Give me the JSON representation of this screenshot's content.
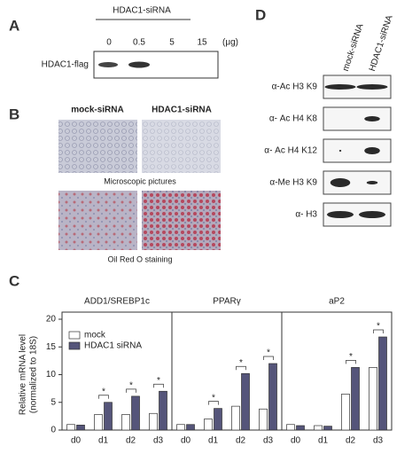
{
  "panel_a": {
    "label": "A",
    "treatment": "HDAC1-siRNA",
    "doses": [
      "0",
      "0.5",
      "5",
      "15"
    ],
    "unit": "(μg)",
    "row": "HDAC1-flag"
  },
  "panel_b": {
    "label": "B",
    "columns": [
      "mock-siRNA",
      "HDAC1-siRNA"
    ],
    "captions": [
      "Microscopic pictures",
      "Oil Red O staining"
    ]
  },
  "panel_c": {
    "label": "C"
  },
  "panel_d": {
    "label": "D",
    "columns": [
      "mock-siRNA",
      "HDAC1-siRNA"
    ],
    "rows": [
      "α-Ac H3 K9",
      "α- Ac H4 K8",
      "α- Ac H4 K12",
      "α-Me H3 K9",
      "α- H3"
    ]
  },
  "chart_data": [
    {
      "type": "bar",
      "title": "ADD1/SREBP1c",
      "categories": [
        "d0",
        "d1",
        "d2",
        "d3"
      ],
      "series": [
        {
          "name": "mock",
          "color": "#ffffff",
          "values": [
            1,
            2.8,
            2.8,
            3
          ]
        },
        {
          "name": "HDAC1 siRNA",
          "color": "#55557a",
          "values": [
            0.9,
            5,
            6.1,
            7
          ]
        }
      ],
      "significance": [
        null,
        "*",
        "*",
        "*"
      ],
      "ylim": [
        0,
        20
      ],
      "yticks": [
        0,
        5,
        10,
        15,
        20
      ],
      "y_label": [
        "Relative mRNA level",
        "(normalized to 18S)"
      ],
      "legend": true
    },
    {
      "type": "bar",
      "title": "PPARγ",
      "categories": [
        "d0",
        "d1",
        "d2",
        "d3"
      ],
      "series": [
        {
          "name": "mock",
          "color": "#ffffff",
          "values": [
            1,
            2,
            4.3,
            3.8
          ]
        },
        {
          "name": "HDAC1 siRNA",
          "color": "#55557a",
          "values": [
            1,
            3.9,
            10.2,
            12
          ]
        }
      ],
      "significance": [
        null,
        "*",
        "*",
        "*"
      ],
      "ylim": [
        0,
        20
      ],
      "yticks": [
        0,
        5,
        10,
        15,
        20
      ],
      "legend": false
    },
    {
      "type": "bar",
      "title": "aP2",
      "categories": [
        "d0",
        "d1",
        "d2",
        "d3"
      ],
      "series": [
        {
          "name": "mock",
          "color": "#ffffff",
          "values": [
            1,
            0.8,
            6.5,
            11.3
          ]
        },
        {
          "name": "HDAC1 siRNA",
          "color": "#55557a",
          "values": [
            0.8,
            0.7,
            11.3,
            16.8
          ]
        }
      ],
      "significance": [
        null,
        null,
        "*",
        "*"
      ],
      "ylim": [
        0,
        20
      ],
      "yticks": [
        0,
        5,
        10,
        15,
        20
      ],
      "legend": false
    }
  ]
}
